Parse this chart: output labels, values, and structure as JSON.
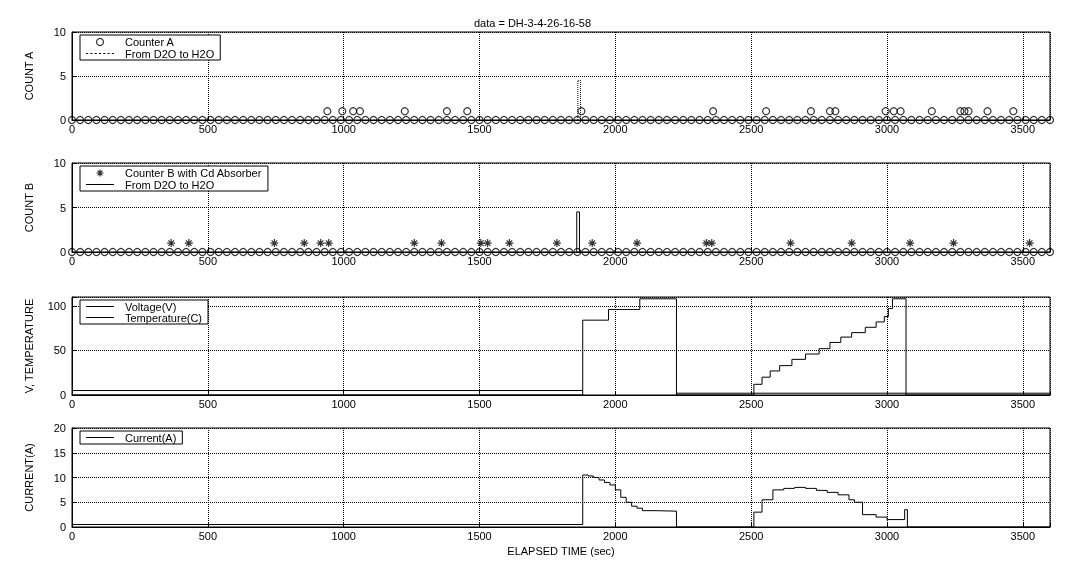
{
  "chart_data": [
    {
      "type": "scatter",
      "title": "data = DH-3-4-26-16-58",
      "ylabel": "COUNT A",
      "xlim": [
        0,
        3600
      ],
      "xticks": [
        0,
        500,
        1000,
        1500,
        2000,
        2500,
        3000,
        3500
      ],
      "ylim": [
        0,
        10
      ],
      "yticks": [
        0,
        5,
        10
      ],
      "grid": true,
      "legend": "top left",
      "series": [
        {
          "color": "#000000",
          "marker": "circle",
          "x": [
            0,
            30,
            60,
            90,
            120,
            150,
            180,
            210,
            240,
            270,
            300,
            330,
            360,
            390,
            420,
            450,
            480,
            510,
            540,
            570,
            600,
            630,
            660,
            690,
            720,
            750,
            780,
            810,
            840,
            870,
            900,
            930,
            960,
            990,
            1020,
            1050,
            1080,
            1110,
            1140,
            1170,
            1200,
            1230,
            1260,
            1290,
            1320,
            1350,
            1380,
            1410,
            1440,
            1470,
            1500,
            1530,
            1560,
            1590,
            1620,
            1650,
            1680,
            1710,
            1740,
            1770,
            1800,
            1830,
            1860,
            1890,
            1920,
            1950,
            1980,
            2010,
            2040,
            2070,
            2100,
            2130,
            2160,
            2190,
            2220,
            2250,
            2280,
            2310,
            2340,
            2370,
            2400,
            2430,
            2460,
            2490,
            2520,
            2550,
            2580,
            2610,
            2640,
            2670,
            2700,
            2730,
            2760,
            2790,
            2820,
            2850,
            2880,
            2910,
            2940,
            2970,
            3000,
            3030,
            3060,
            3090,
            3120,
            3150,
            3180,
            3210,
            3240,
            3270,
            3300,
            3330,
            3360,
            3390,
            3420,
            3450,
            3480,
            3510,
            3540,
            3570,
            3600
          ],
          "values": [
            0,
            0,
            0,
            0,
            0,
            0,
            0,
            0,
            0,
            0,
            0,
            0,
            0,
            0,
            0,
            0,
            0,
            0,
            0,
            0,
            0,
            0,
            0,
            0,
            0,
            0,
            0,
            0,
            0,
            0,
            0,
            0,
            0,
            0,
            0,
            0,
            0,
            0,
            0,
            0,
            0,
            0,
            0,
            0,
            0,
            0,
            0,
            0,
            0,
            0,
            0,
            0,
            0,
            0,
            0,
            0,
            0,
            0,
            0,
            0,
            0,
            0,
            0,
            0,
            0,
            0,
            0,
            0,
            0,
            0,
            0,
            0,
            0,
            0,
            0,
            0,
            0,
            0,
            0,
            0,
            0,
            0,
            0,
            0,
            0,
            0,
            0,
            0,
            0,
            0,
            0,
            0,
            0,
            0,
            0,
            0,
            0,
            0,
            0,
            0,
            0,
            0,
            0,
            0,
            0,
            0,
            0,
            0,
            0,
            0,
            0,
            0,
            0,
            0,
            0,
            0,
            0,
            0,
            0,
            0,
            0
          ]
        },
        {
          "name": "Counter A",
          "color": "#000000",
          "marker": "circle",
          "x": [
            940,
            995,
            1035,
            1060,
            1225,
            1380,
            1455,
            1875,
            2360,
            2555,
            2720,
            2790,
            2810,
            2995,
            3025,
            3050,
            3165,
            3270,
            3285,
            3300,
            3370,
            3465
          ],
          "values": [
            1,
            1,
            1,
            1,
            1,
            1,
            1,
            1,
            1,
            1,
            1,
            1,
            1,
            1,
            1,
            1,
            1,
            1,
            1,
            1,
            1,
            1
          ]
        },
        {
          "name": "From D2O to H2O",
          "color": "#000000",
          "type": "line",
          "marker": "none",
          "line_style": "dotted",
          "x": [
            1862,
            1862,
            1872,
            1872
          ],
          "values": [
            0,
            4.5,
            4.5,
            0
          ]
        }
      ]
    },
    {
      "type": "scatter",
      "ylabel": "COUNT B",
      "xlim": [
        0,
        3600
      ],
      "xticks": [
        0,
        500,
        1000,
        1500,
        2000,
        2500,
        3000,
        3500
      ],
      "ylim": [
        0,
        10
      ],
      "yticks": [
        0,
        5,
        10
      ],
      "grid": true,
      "legend": "top left",
      "series": [
        {
          "color": "#000000",
          "marker": "circle",
          "x": [
            0,
            30,
            60,
            90,
            120,
            150,
            180,
            210,
            240,
            270,
            300,
            330,
            360,
            390,
            420,
            450,
            480,
            510,
            540,
            570,
            600,
            630,
            660,
            690,
            720,
            750,
            780,
            810,
            840,
            870,
            900,
            930,
            960,
            990,
            1020,
            1050,
            1080,
            1110,
            1140,
            1170,
            1200,
            1230,
            1260,
            1290,
            1320,
            1350,
            1380,
            1410,
            1440,
            1470,
            1500,
            1530,
            1560,
            1590,
            1620,
            1650,
            1680,
            1710,
            1740,
            1770,
            1800,
            1830,
            1860,
            1890,
            1920,
            1950,
            1980,
            2010,
            2040,
            2070,
            2100,
            2130,
            2160,
            2190,
            2220,
            2250,
            2280,
            2310,
            2340,
            2370,
            2400,
            2430,
            2460,
            2490,
            2520,
            2550,
            2580,
            2610,
            2640,
            2670,
            2700,
            2730,
            2760,
            2790,
            2820,
            2850,
            2880,
            2910,
            2940,
            2970,
            3000,
            3030,
            3060,
            3090,
            3120,
            3150,
            3180,
            3210,
            3240,
            3270,
            3300,
            3330,
            3360,
            3390,
            3420,
            3450,
            3480,
            3510,
            3540,
            3570,
            3600
          ],
          "values": [
            0,
            0,
            0,
            0,
            0,
            0,
            0,
            0,
            0,
            0,
            0,
            0,
            0,
            0,
            0,
            0,
            0,
            0,
            0,
            0,
            0,
            0,
            0,
            0,
            0,
            0,
            0,
            0,
            0,
            0,
            0,
            0,
            0,
            0,
            0,
            0,
            0,
            0,
            0,
            0,
            0,
            0,
            0,
            0,
            0,
            0,
            0,
            0,
            0,
            0,
            0,
            0,
            0,
            0,
            0,
            0,
            0,
            0,
            0,
            0,
            0,
            0,
            0,
            0,
            0,
            0,
            0,
            0,
            0,
            0,
            0,
            0,
            0,
            0,
            0,
            0,
            0,
            0,
            0,
            0,
            0,
            0,
            0,
            0,
            0,
            0,
            0,
            0,
            0,
            0,
            0,
            0,
            0,
            0,
            0,
            0,
            0,
            0,
            0,
            0,
            0,
            0,
            0,
            0,
            0,
            0,
            0,
            0,
            0,
            0,
            0,
            0,
            0,
            0,
            0,
            0,
            0,
            0,
            0,
            0,
            0
          ]
        },
        {
          "name": "Counter B with Cd Absorber",
          "color": "#000000",
          "marker": "cross",
          "x": [
            365,
            430,
            745,
            855,
            915,
            945,
            1260,
            1360,
            1505,
            1530,
            1610,
            1785,
            1915,
            2080,
            2335,
            2355,
            2645,
            2870,
            3085,
            3245,
            3525
          ],
          "values": [
            1,
            1,
            1,
            1,
            1,
            1,
            1,
            1,
            1,
            1,
            1,
            1,
            1,
            1,
            1,
            1,
            1,
            1,
            1,
            1,
            1
          ]
        },
        {
          "name": "From D2O to H2O",
          "color": "#000000",
          "type": "line",
          "marker": "none",
          "line_style": "solid",
          "x": [
            1858,
            1858,
            1868,
            1868
          ],
          "values": [
            0,
            4.5,
            4.5,
            0
          ]
        }
      ]
    },
    {
      "type": "step",
      "ylabel": "V, TEMPERATURE",
      "xlim": [
        0,
        3600
      ],
      "xticks": [
        0,
        500,
        1000,
        1500,
        2000,
        2500,
        3000,
        3500
      ],
      "ylim": [
        0,
        110
      ],
      "yticks": [
        0,
        50,
        100
      ],
      "grid": true,
      "legend": "top left",
      "series": [
        {
          "name": "Voltage(V)",
          "color": "#000000",
          "marker": "none",
          "line_style": "solid",
          "x": [
            0,
            1880,
            1975,
            2090,
            2225,
            2510,
            2540,
            2570,
            2605,
            2650,
            2700,
            2750,
            2790,
            2830,
            2870,
            2920,
            2960,
            2990,
            3005,
            3020,
            3070,
            3600
          ],
          "values": [
            0,
            84,
            96,
            108,
            0,
            12,
            20,
            27,
            33,
            40,
            46,
            52,
            59,
            65,
            70,
            76,
            82,
            88,
            97,
            108,
            0,
            0
          ]
        },
        {
          "name": "Temperature(C)",
          "color": "#000000",
          "marker": "none",
          "line_style": "solid",
          "x": [
            0,
            1880,
            2225,
            3600
          ],
          "values": [
            5,
            null,
            2,
            2
          ]
        }
      ]
    },
    {
      "type": "step",
      "ylabel": "CURRENT(A)",
      "xlabel": "ELAPSED TIME (sec)",
      "xlim": [
        0,
        3600
      ],
      "xticks": [
        0,
        500,
        1000,
        1500,
        2000,
        2500,
        3000,
        3500
      ],
      "ylim": [
        0,
        20
      ],
      "yticks": [
        0,
        5,
        10,
        15,
        20
      ],
      "grid": true,
      "legend": "top left",
      "series": [
        {
          "name": "Current(A)",
          "color": "#000000",
          "marker": "none",
          "line_style": "solid",
          "x": [
            0,
            1880,
            1900,
            1920,
            1940,
            1960,
            1980,
            2000,
            2020,
            2040,
            2060,
            2080,
            2100,
            2150,
            2225,
            2510,
            2540,
            2580,
            2620,
            2660,
            2700,
            2740,
            2780,
            2820,
            2860,
            2880,
            2910,
            2960,
            3000,
            3065,
            3075,
            3600
          ],
          "values": [
            0.5,
            10.5,
            10.3,
            10,
            9.5,
            9,
            8.5,
            7.5,
            6,
            5,
            4.2,
            3.8,
            3.3,
            3.2,
            0,
            3,
            5.5,
            7.5,
            7.8,
            8,
            7.8,
            7.4,
            7,
            6.5,
            5.5,
            5,
            2.5,
            2,
            1.5,
            3.5,
            0,
            0
          ]
        }
      ]
    }
  ]
}
